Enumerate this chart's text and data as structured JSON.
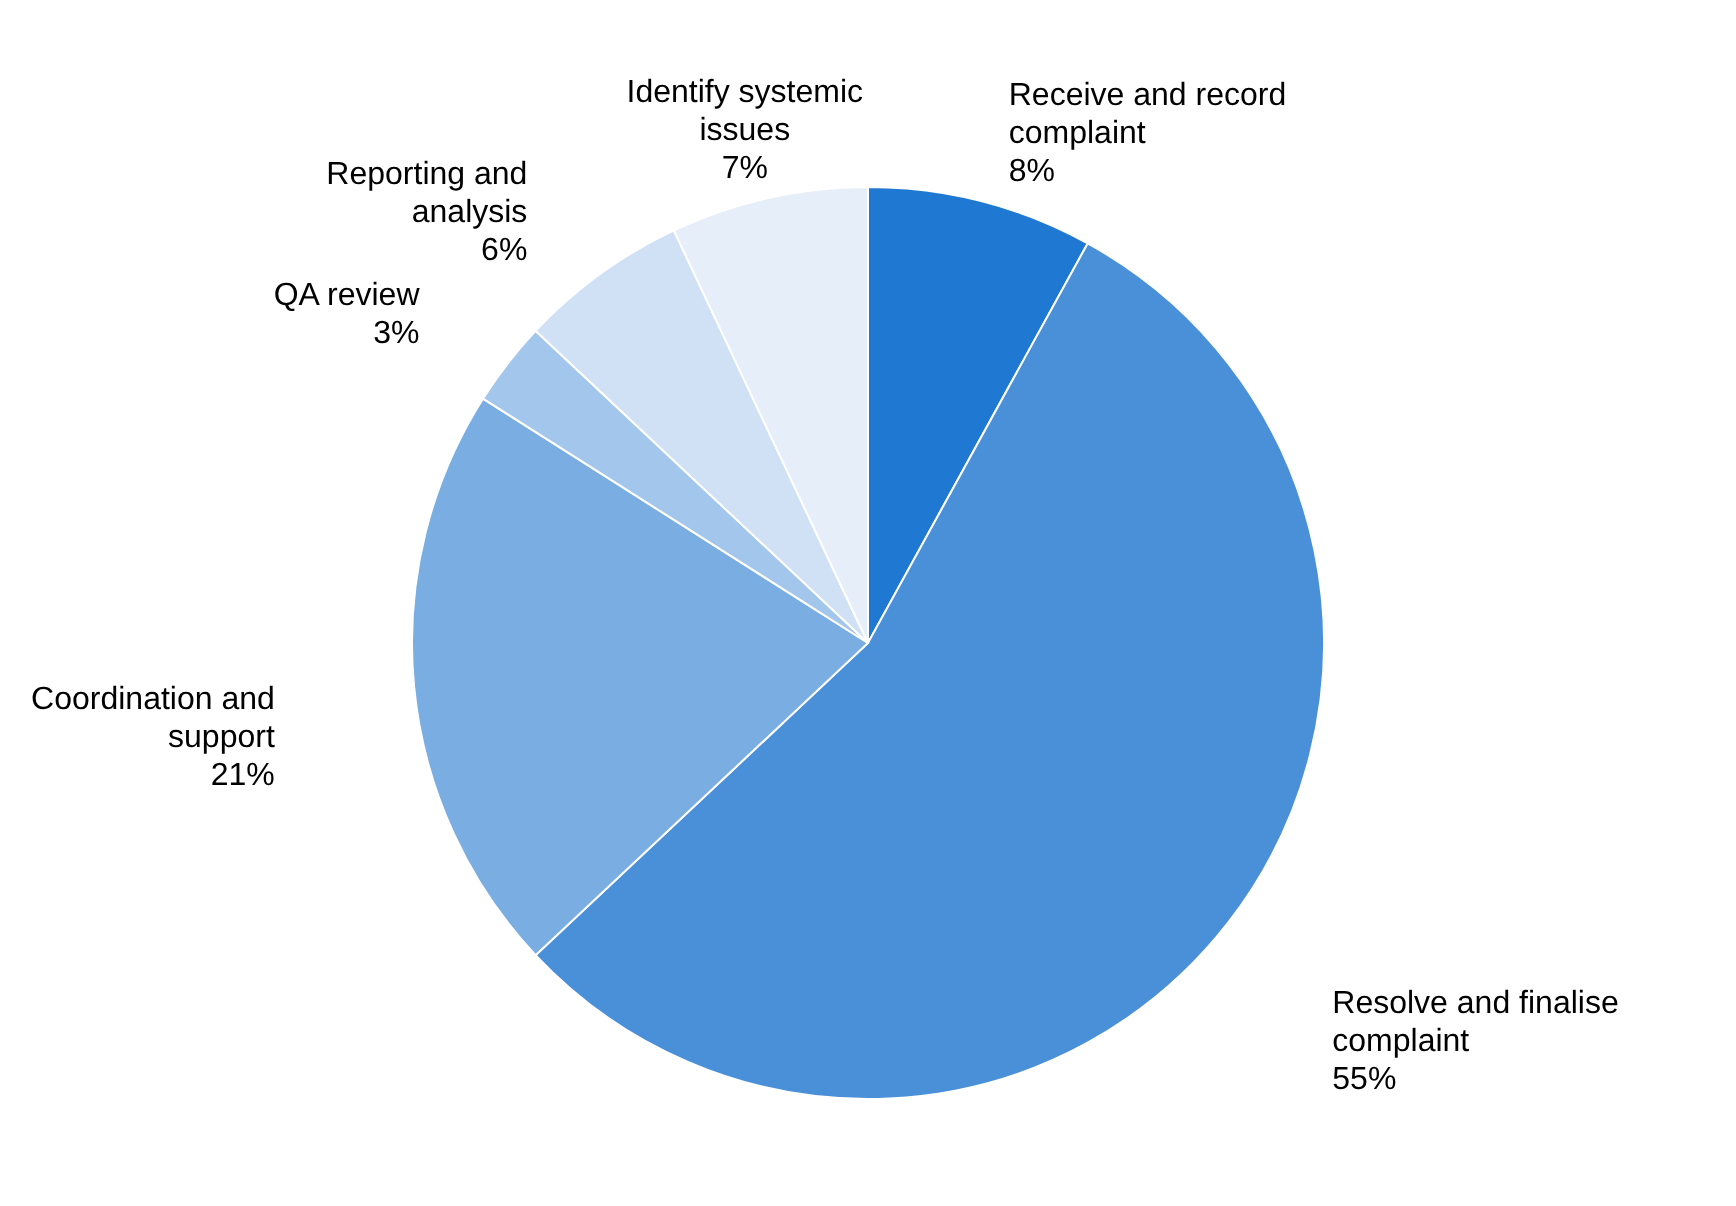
{
  "chart_data": {
    "type": "pie",
    "categories": [
      "Receive and record complaint",
      "Resolve and finalise complaint",
      "Coordination and support",
      "QA review",
      "Reporting and analysis",
      "Identify systemic issues"
    ],
    "values": [
      8,
      55,
      21,
      3,
      6,
      7
    ],
    "colors": [
      "#1f78d1",
      "#4a90d9",
      "#7aade2",
      "#a3c6ec",
      "#d0e1f5",
      "#e6eef9"
    ],
    "value_labels": [
      "8%",
      "55%",
      "21%",
      "3%",
      "6%",
      "7%"
    ]
  }
}
